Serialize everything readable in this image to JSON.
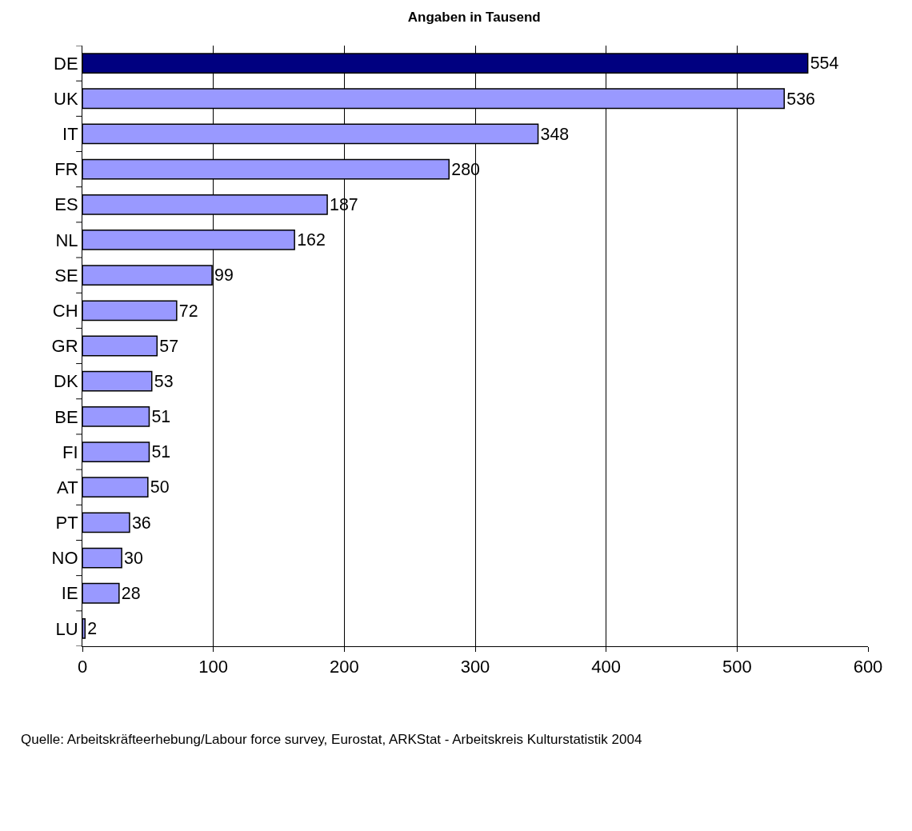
{
  "chart_data": {
    "type": "bar",
    "orientation": "horizontal",
    "title": "Angaben in Tausend",
    "categories": [
      "DE",
      "UK",
      "IT",
      "FR",
      "ES",
      "NL",
      "SE",
      "CH",
      "GR",
      "DK",
      "BE",
      "FI",
      "AT",
      "PT",
      "NO",
      "IE",
      "LU"
    ],
    "values": [
      554,
      536,
      348,
      280,
      187,
      162,
      99,
      72,
      57,
      53,
      51,
      51,
      50,
      36,
      30,
      28,
      2
    ],
    "colors": [
      "#000080",
      "#9999ff",
      "#9999ff",
      "#9999ff",
      "#9999ff",
      "#9999ff",
      "#9999ff",
      "#9999ff",
      "#9999ff",
      "#9999ff",
      "#9999ff",
      "#9999ff",
      "#9999ff",
      "#9999ff",
      "#9999ff",
      "#9999ff",
      "#9999ff"
    ],
    "data_labels": true,
    "xlim": [
      0,
      600
    ],
    "xticks": [
      0,
      100,
      200,
      300,
      400,
      500,
      600
    ],
    "grid": "x",
    "annotations": [
      "Quelle: Arbeitskräfteerhebung/Labour force survey, Eurostat, ARKStat - Arbeitskreis Kulturstatistik 2004"
    ]
  }
}
